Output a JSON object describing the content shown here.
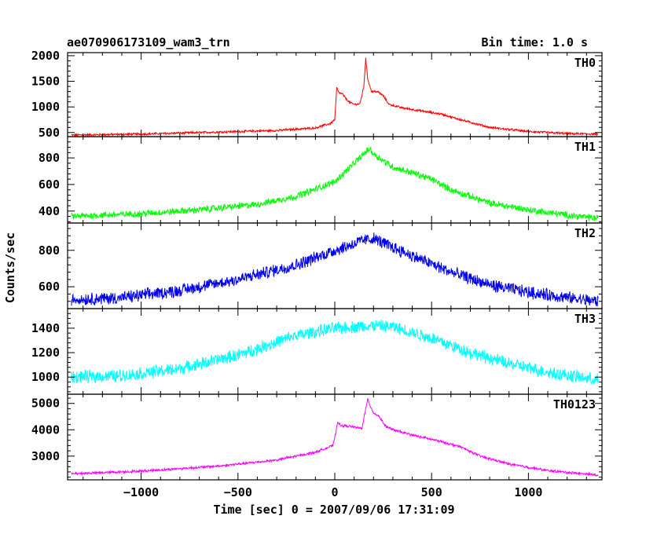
{
  "header": {
    "title": "ae070906173109_wam3_trn",
    "bin_time": "Bin time: 1.0 s"
  },
  "colors": {
    "TH0": "#ff0000",
    "TH1": "#00ff00",
    "TH2": "#0000ee",
    "TH3": "#00ffff",
    "TH0123": "#ff00ff"
  },
  "chart_data": {
    "type": "line",
    "title": "ae070906173109_wam3_trn",
    "xlabel": "Time [sec] 0 = 2007/09/06 17:31:09",
    "ylabel": "Counts/sec",
    "xlim": [
      -1380,
      1380
    ],
    "x_ticks": [
      -1000,
      -500,
      0,
      500,
      1000
    ],
    "x_tick_labels": [
      "−1000",
      "−500",
      "0",
      "500",
      "1000"
    ],
    "bin_time": 1.0,
    "series": [
      {
        "name": "TH0",
        "ylim": [
          420,
          2060
        ],
        "y_ticks": [
          500,
          1000,
          1500,
          2000
        ],
        "noise": 18,
        "points": [
          [
            -1360,
            450
          ],
          [
            -1000,
            470
          ],
          [
            -600,
            510
          ],
          [
            -300,
            540
          ],
          [
            -100,
            590
          ],
          [
            -20,
            680
          ],
          [
            0,
            760
          ],
          [
            10,
            1380
          ],
          [
            20,
            1280
          ],
          [
            40,
            1250
          ],
          [
            60,
            1150
          ],
          [
            80,
            1080
          ],
          [
            100,
            1050
          ],
          [
            130,
            1060
          ],
          [
            150,
            1400
          ],
          [
            160,
            1950
          ],
          [
            170,
            1550
          ],
          [
            190,
            1300
          ],
          [
            220,
            1300
          ],
          [
            250,
            1220
          ],
          [
            280,
            1050
          ],
          [
            350,
            980
          ],
          [
            450,
            920
          ],
          [
            550,
            860
          ],
          [
            650,
            750
          ],
          [
            800,
            600
          ],
          [
            1000,
            520
          ],
          [
            1200,
            480
          ],
          [
            1360,
            470
          ]
        ]
      },
      {
        "name": "TH1",
        "ylim": [
          310,
          960
        ],
        "y_ticks": [
          400,
          600,
          800
        ],
        "noise": 22,
        "points": [
          [
            -1360,
            360
          ],
          [
            -1000,
            380
          ],
          [
            -700,
            410
          ],
          [
            -400,
            450
          ],
          [
            -200,
            510
          ],
          [
            0,
            620
          ],
          [
            100,
            760
          ],
          [
            150,
            830
          ],
          [
            180,
            870
          ],
          [
            200,
            830
          ],
          [
            300,
            730
          ],
          [
            400,
            690
          ],
          [
            500,
            640
          ],
          [
            600,
            560
          ],
          [
            800,
            460
          ],
          [
            1000,
            410
          ],
          [
            1200,
            370
          ],
          [
            1360,
            345
          ]
        ]
      },
      {
        "name": "TH2",
        "ylim": [
          480,
          950
        ],
        "y_ticks": [
          600,
          800
        ],
        "noise": 30,
        "points": [
          [
            -1360,
            530
          ],
          [
            -1100,
            540
          ],
          [
            -800,
            580
          ],
          [
            -500,
            640
          ],
          [
            -200,
            720
          ],
          [
            0,
            800
          ],
          [
            150,
            855
          ],
          [
            200,
            865
          ],
          [
            250,
            840
          ],
          [
            400,
            770
          ],
          [
            600,
            680
          ],
          [
            800,
            610
          ],
          [
            1000,
            570
          ],
          [
            1200,
            540
          ],
          [
            1360,
            520
          ]
        ]
      },
      {
        "name": "TH3",
        "ylim": [
          860,
          1560
        ],
        "y_ticks": [
          1000,
          1200,
          1400
        ],
        "noise": 45,
        "points": [
          [
            -1360,
            1000
          ],
          [
            -1100,
            1010
          ],
          [
            -800,
            1070
          ],
          [
            -500,
            1180
          ],
          [
            -200,
            1340
          ],
          [
            0,
            1400
          ],
          [
            200,
            1420
          ],
          [
            300,
            1410
          ],
          [
            500,
            1320
          ],
          [
            700,
            1200
          ],
          [
            900,
            1110
          ],
          [
            1100,
            1040
          ],
          [
            1360,
            975
          ]
        ]
      },
      {
        "name": "TH0123",
        "ylim": [
          2100,
          5350
        ],
        "y_ticks": [
          3000,
          4000,
          5000
        ],
        "noise": 40,
        "points": [
          [
            -1360,
            2330
          ],
          [
            -1000,
            2430
          ],
          [
            -600,
            2620
          ],
          [
            -300,
            2850
          ],
          [
            -100,
            3150
          ],
          [
            -10,
            3400
          ],
          [
            0,
            3700
          ],
          [
            15,
            4320
          ],
          [
            30,
            4150
          ],
          [
            60,
            4150
          ],
          [
            100,
            4100
          ],
          [
            140,
            4050
          ],
          [
            160,
            4800
          ],
          [
            170,
            5150
          ],
          [
            180,
            4950
          ],
          [
            200,
            4650
          ],
          [
            230,
            4500
          ],
          [
            260,
            4150
          ],
          [
            300,
            4000
          ],
          [
            400,
            3800
          ],
          [
            550,
            3550
          ],
          [
            650,
            3350
          ],
          [
            750,
            3000
          ],
          [
            900,
            2700
          ],
          [
            1100,
            2450
          ],
          [
            1360,
            2280
          ]
        ]
      }
    ]
  }
}
